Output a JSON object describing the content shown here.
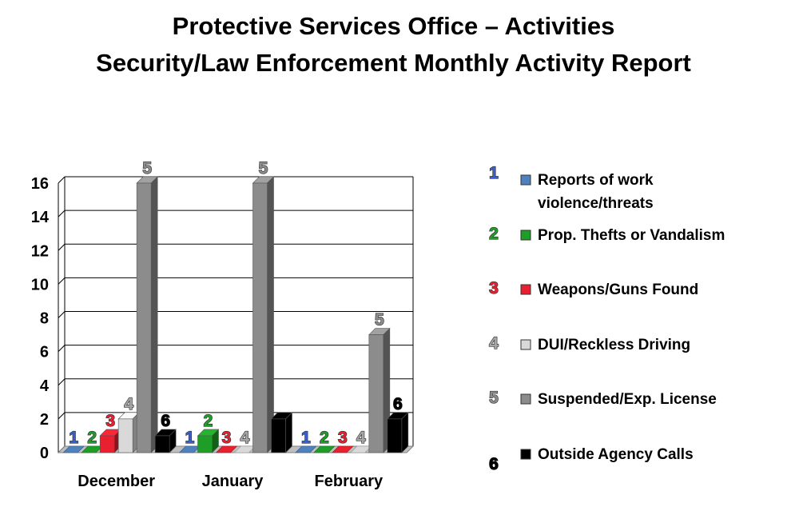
{
  "title": {
    "line1": "Protective Services Office – Activities",
    "line2": "Security/Law Enforcement Monthly Activity Report"
  },
  "chart_data": {
    "type": "bar",
    "title": "Protective Services Office – Activities Security/Law Enforcement Monthly Activity Report",
    "xlabel": "",
    "ylabel": "",
    "ylim": [
      0,
      16
    ],
    "yticks": [
      0,
      2,
      4,
      6,
      8,
      10,
      12,
      14,
      16
    ],
    "grid": true,
    "legend_position": "right",
    "categories": [
      "December",
      "January",
      "February"
    ],
    "series": [
      {
        "name": "Reports of work violence/threats",
        "legend_lines": [
          "Reports of work",
          "violence/threats"
        ],
        "marker": "1",
        "color": "#4f81bd",
        "values": [
          0,
          0,
          0
        ]
      },
      {
        "name": "Prop. Thefts or Vandalism",
        "legend_lines": [
          "Prop. Thefts or Vandalism"
        ],
        "marker": "2",
        "color": "#1e9e27",
        "values": [
          0,
          1,
          0
        ]
      },
      {
        "name": "Weapons/Guns Found",
        "legend_lines": [
          "Weapons/Guns Found"
        ],
        "marker": "3",
        "color": "#e8202f",
        "values": [
          1,
          0,
          0
        ]
      },
      {
        "name": "DUI/Reckless Driving",
        "legend_lines": [
          "DUI/Reckless Driving"
        ],
        "marker": "4",
        "color": "#d9d9d9",
        "values": [
          2,
          0,
          0
        ]
      },
      {
        "name": "Suspended/Exp. License",
        "legend_lines": [
          "Suspended/Exp. License"
        ],
        "marker": "5",
        "color": "#8c8c8c",
        "values": [
          16,
          16,
          7
        ]
      },
      {
        "name": "Outside Agency Calls",
        "legend_lines": [
          "Outside Agency Calls"
        ],
        "marker": "6",
        "color": "#000000",
        "values": [
          1,
          2,
          2
        ]
      }
    ],
    "marker_label_colors": [
      "#3a5fcd",
      "#1e9e27",
      "#e8202f",
      "#a6a6a6",
      "#8c8c8c",
      "#000000"
    ],
    "data_labels": [
      [
        "1",
        "2",
        "3",
        "4",
        "5",
        "6"
      ],
      [
        "1",
        "2",
        "3",
        "4",
        "5",
        ""
      ],
      [
        "1",
        "2",
        "3",
        "4",
        "5",
        "6"
      ]
    ]
  }
}
